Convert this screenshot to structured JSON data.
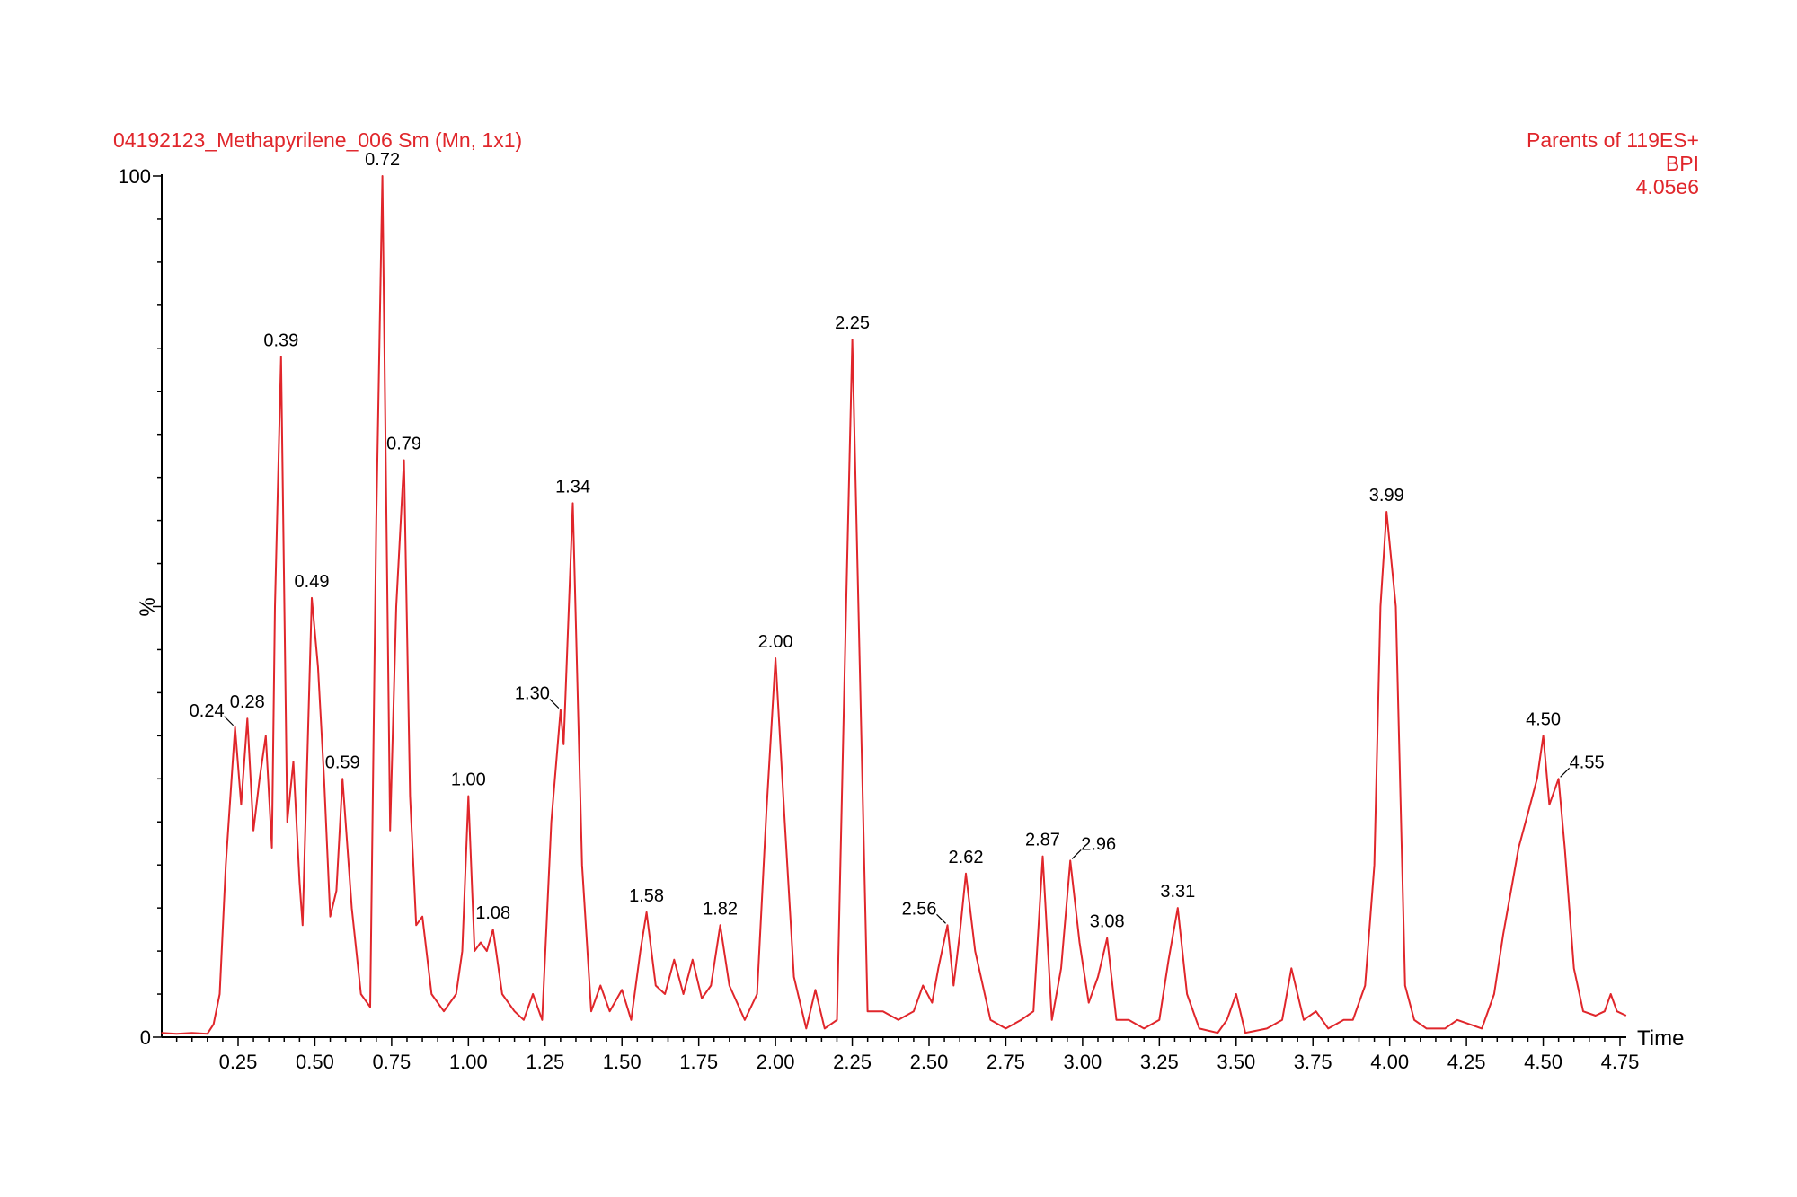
{
  "header": {
    "left_title": "04192123_Methapyrilene_006 Sm (Mn, 1x1)",
    "right_lines": [
      "Parents of 119ES+",
      "BPI",
      "4.05e6"
    ]
  },
  "colors": {
    "trace": "#e0262b",
    "header_text": "#e0262b",
    "axis": "#000000",
    "label_text": "#000000"
  },
  "chart_data": {
    "type": "line",
    "title": "04192123_Methapyrilene_006 Sm (Mn, 1x1)",
    "xlabel": "Time",
    "ylabel": "%",
    "xlim": [
      0.0,
      4.8
    ],
    "ylim": [
      0,
      100
    ],
    "x_ticks": [
      0.25,
      0.5,
      0.75,
      1.0,
      1.25,
      1.5,
      1.75,
      2.0,
      2.25,
      2.5,
      2.75,
      3.0,
      3.25,
      3.5,
      3.75,
      4.0,
      4.25,
      4.5,
      4.75
    ],
    "x_tick_labels": [
      "0.25",
      "0.50",
      "0.75",
      "1.00",
      "1.25",
      "1.50",
      "1.75",
      "2.00",
      "2.25",
      "2.50",
      "2.75",
      "3.00",
      "3.25",
      "3.50",
      "3.75",
      "4.00",
      "4.25",
      "4.50",
      "4.75"
    ],
    "y_tick_labels": [
      "0",
      "100"
    ],
    "grid": false,
    "series": [
      {
        "points": [
          [
            0.0,
            0.5
          ],
          [
            0.05,
            0.4
          ],
          [
            0.1,
            0.5
          ],
          [
            0.15,
            0.4
          ],
          [
            0.17,
            1.5
          ],
          [
            0.19,
            5
          ],
          [
            0.21,
            20
          ],
          [
            0.24,
            36
          ],
          [
            0.26,
            27
          ],
          [
            0.28,
            37
          ],
          [
            0.3,
            24
          ],
          [
            0.32,
            30
          ],
          [
            0.34,
            35
          ],
          [
            0.36,
            22
          ],
          [
            0.37,
            50
          ],
          [
            0.39,
            79
          ],
          [
            0.41,
            25
          ],
          [
            0.43,
            32
          ],
          [
            0.45,
            18
          ],
          [
            0.46,
            13
          ],
          [
            0.49,
            51
          ],
          [
            0.51,
            43
          ],
          [
            0.53,
            30
          ],
          [
            0.55,
            14
          ],
          [
            0.57,
            17
          ],
          [
            0.59,
            30
          ],
          [
            0.62,
            15
          ],
          [
            0.65,
            5
          ],
          [
            0.68,
            3.5
          ],
          [
            0.7,
            60
          ],
          [
            0.72,
            100
          ],
          [
            0.745,
            24
          ],
          [
            0.765,
            50
          ],
          [
            0.79,
            67
          ],
          [
            0.81,
            28
          ],
          [
            0.83,
            13
          ],
          [
            0.85,
            14
          ],
          [
            0.88,
            5
          ],
          [
            0.92,
            3
          ],
          [
            0.96,
            5
          ],
          [
            0.98,
            10
          ],
          [
            1.0,
            28
          ],
          [
            1.02,
            10
          ],
          [
            1.04,
            11
          ],
          [
            1.06,
            10
          ],
          [
            1.08,
            12.5
          ],
          [
            1.11,
            5
          ],
          [
            1.15,
            3
          ],
          [
            1.18,
            2
          ],
          [
            1.21,
            5
          ],
          [
            1.24,
            2
          ],
          [
            1.27,
            25
          ],
          [
            1.3,
            38
          ],
          [
            1.31,
            34
          ],
          [
            1.34,
            62
          ],
          [
            1.37,
            20
          ],
          [
            1.4,
            3
          ],
          [
            1.43,
            6
          ],
          [
            1.46,
            3
          ],
          [
            1.5,
            5.5
          ],
          [
            1.53,
            2
          ],
          [
            1.56,
            10
          ],
          [
            1.58,
            14.5
          ],
          [
            1.61,
            6
          ],
          [
            1.64,
            5
          ],
          [
            1.67,
            9
          ],
          [
            1.7,
            5
          ],
          [
            1.73,
            9
          ],
          [
            1.76,
            4.5
          ],
          [
            1.79,
            6
          ],
          [
            1.82,
            13
          ],
          [
            1.85,
            6
          ],
          [
            1.9,
            2
          ],
          [
            1.94,
            5
          ],
          [
            1.97,
            26
          ],
          [
            2.0,
            44
          ],
          [
            2.03,
            25
          ],
          [
            2.06,
            7
          ],
          [
            2.1,
            1
          ],
          [
            2.13,
            5.5
          ],
          [
            2.16,
            1
          ],
          [
            2.2,
            2
          ],
          [
            2.23,
            50
          ],
          [
            2.25,
            81
          ],
          [
            2.27,
            50
          ],
          [
            2.3,
            3
          ],
          [
            2.35,
            3
          ],
          [
            2.4,
            2
          ],
          [
            2.45,
            3
          ],
          [
            2.48,
            6
          ],
          [
            2.51,
            4
          ],
          [
            2.53,
            8
          ],
          [
            2.56,
            13
          ],
          [
            2.58,
            6
          ],
          [
            2.6,
            12
          ],
          [
            2.62,
            19
          ],
          [
            2.65,
            10
          ],
          [
            2.7,
            2
          ],
          [
            2.75,
            1
          ],
          [
            2.8,
            2
          ],
          [
            2.84,
            3
          ],
          [
            2.87,
            21
          ],
          [
            2.9,
            2
          ],
          [
            2.93,
            8
          ],
          [
            2.96,
            20.5
          ],
          [
            2.99,
            11
          ],
          [
            3.02,
            4
          ],
          [
            3.05,
            7
          ],
          [
            3.08,
            11.5
          ],
          [
            3.11,
            2
          ],
          [
            3.15,
            2
          ],
          [
            3.2,
            1
          ],
          [
            3.25,
            2
          ],
          [
            3.28,
            9
          ],
          [
            3.31,
            15
          ],
          [
            3.34,
            5
          ],
          [
            3.38,
            1
          ],
          [
            3.44,
            0.5
          ],
          [
            3.47,
            2
          ],
          [
            3.5,
            5
          ],
          [
            3.53,
            0.5
          ],
          [
            3.6,
            1
          ],
          [
            3.65,
            2
          ],
          [
            3.68,
            8
          ],
          [
            3.72,
            2
          ],
          [
            3.76,
            3
          ],
          [
            3.8,
            1
          ],
          [
            3.85,
            2
          ],
          [
            3.88,
            2
          ],
          [
            3.92,
            6
          ],
          [
            3.95,
            20
          ],
          [
            3.97,
            50
          ],
          [
            3.99,
            61
          ],
          [
            4.02,
            50
          ],
          [
            4.05,
            6
          ],
          [
            4.08,
            2
          ],
          [
            4.12,
            1
          ],
          [
            4.18,
            1
          ],
          [
            4.22,
            2
          ],
          [
            4.26,
            1.5
          ],
          [
            4.3,
            1
          ],
          [
            4.34,
            5
          ],
          [
            4.37,
            12
          ],
          [
            4.4,
            18
          ],
          [
            4.42,
            22
          ],
          [
            4.45,
            26
          ],
          [
            4.48,
            30
          ],
          [
            4.5,
            35
          ],
          [
            4.52,
            27
          ],
          [
            4.55,
            30
          ],
          [
            4.57,
            22
          ],
          [
            4.6,
            8
          ],
          [
            4.63,
            3
          ],
          [
            4.67,
            2.5
          ],
          [
            4.7,
            3
          ],
          [
            4.72,
            5
          ],
          [
            4.74,
            3
          ],
          [
            4.77,
            2.5
          ]
        ]
      }
    ],
    "annotations": [
      {
        "label": "0.24",
        "x": 0.24,
        "y": 36,
        "leader": true,
        "side": "left"
      },
      {
        "label": "0.28",
        "x": 0.28,
        "y": 37
      },
      {
        "label": "0.39",
        "x": 0.39,
        "y": 79
      },
      {
        "label": "0.49",
        "x": 0.49,
        "y": 51
      },
      {
        "label": "0.59",
        "x": 0.59,
        "y": 30
      },
      {
        "label": "0.72",
        "x": 0.72,
        "y": 100
      },
      {
        "label": "0.79",
        "x": 0.79,
        "y": 67
      },
      {
        "label": "1.00",
        "x": 1.0,
        "y": 28
      },
      {
        "label": "1.08",
        "x": 1.08,
        "y": 12.5
      },
      {
        "label": "1.30",
        "x": 1.3,
        "y": 38,
        "leader": true,
        "side": "left"
      },
      {
        "label": "1.34",
        "x": 1.34,
        "y": 62
      },
      {
        "label": "1.58",
        "x": 1.58,
        "y": 14.5
      },
      {
        "label": "1.82",
        "x": 1.82,
        "y": 13
      },
      {
        "label": "2.00",
        "x": 2.0,
        "y": 44
      },
      {
        "label": "2.25",
        "x": 2.25,
        "y": 81
      },
      {
        "label": "2.56",
        "x": 2.56,
        "y": 13,
        "leader": true,
        "side": "left"
      },
      {
        "label": "2.62",
        "x": 2.62,
        "y": 19
      },
      {
        "label": "2.87",
        "x": 2.87,
        "y": 21
      },
      {
        "label": "2.96",
        "x": 2.96,
        "y": 20.5,
        "leader": true,
        "side": "right"
      },
      {
        "label": "3.08",
        "x": 3.08,
        "y": 11.5
      },
      {
        "label": "3.31",
        "x": 3.31,
        "y": 15
      },
      {
        "label": "3.99",
        "x": 3.99,
        "y": 61
      },
      {
        "label": "4.50",
        "x": 4.5,
        "y": 35
      },
      {
        "label": "4.55",
        "x": 4.55,
        "y": 30,
        "leader": true,
        "side": "right"
      }
    ]
  }
}
